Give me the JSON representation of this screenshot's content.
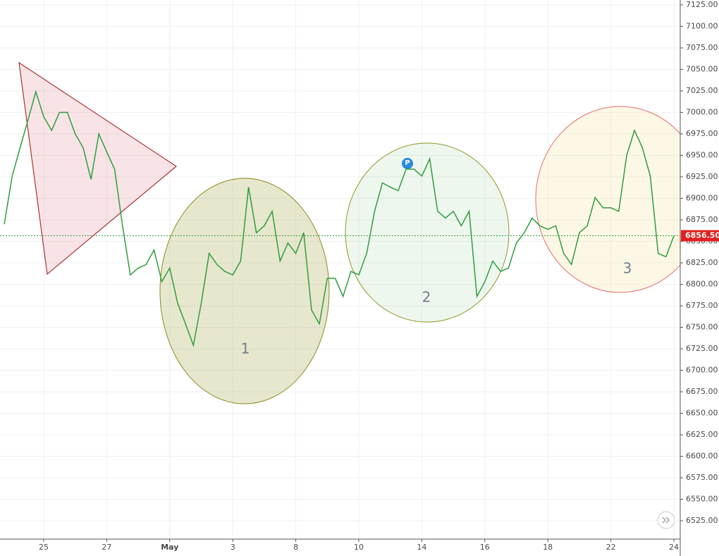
{
  "chart_data": {
    "type": "line",
    "categories": [
      null,
      null,
      null,
      null,
      null,
      "25",
      null,
      null,
      null,
      null,
      null,
      null,
      null,
      "27",
      null,
      null,
      null,
      null,
      null,
      null,
      null,
      "May",
      null,
      null,
      null,
      null,
      null,
      null,
      null,
      "3",
      null,
      null,
      null,
      null,
      null,
      null,
      null,
      "8",
      null,
      null,
      null,
      null,
      null,
      null,
      null,
      "10",
      null,
      null,
      null,
      null,
      null,
      null,
      null,
      "14",
      null,
      null,
      null,
      null,
      null,
      null,
      null,
      "16",
      null,
      null,
      null,
      null,
      null,
      null,
      null,
      "18",
      null,
      null,
      null,
      null,
      null,
      null,
      null,
      "22",
      null,
      null,
      null,
      null,
      null,
      null,
      null,
      "24"
    ],
    "series": [
      {
        "color": "#2e9e3e",
        "values": [
          6870,
          6926,
          6959,
          6991,
          7024,
          6995,
          6979,
          7000,
          7000,
          6975,
          6959,
          6922,
          6975,
          6954,
          6934,
          6868,
          6811,
          6819,
          6823,
          6840,
          6803,
          6819,
          6778,
          6754,
          6729,
          6778,
          6836,
          6823,
          6815,
          6811,
          6827,
          6913,
          6860,
          6868,
          6885,
          6827,
          6848,
          6836,
          6860,
          6770,
          6754,
          6807,
          6807,
          6786,
          6815,
          6811,
          6836,
          6885,
          6918,
          6913,
          6909,
          6934,
          6934,
          6926,
          6946,
          6885,
          6877,
          6885,
          6868,
          6885,
          6786,
          6803,
          6827,
          6815,
          6819,
          6848,
          6860,
          6877,
          6868,
          6864,
          6868,
          6836,
          6823,
          6860,
          6868,
          6901,
          6889,
          6889,
          6885,
          6950,
          6979,
          6959,
          6926,
          6836,
          6832,
          6856.5
        ]
      }
    ],
    "last_price": {
      "value": 6856.5,
      "label": "6856.50"
    },
    "ylim": [
      6503.7,
      7130.7
    ],
    "yticks": [
      {
        "value": 6525,
        "label": "6525.00"
      },
      {
        "value": 6550,
        "label": "6550.00"
      },
      {
        "value": 6575,
        "label": "6575.00"
      },
      {
        "value": 6600,
        "label": "6600.00"
      },
      {
        "value": 6625,
        "label": "6625.00"
      },
      {
        "value": 6650,
        "label": "6650.00"
      },
      {
        "value": 6675,
        "label": "6675.00"
      },
      {
        "value": 6700,
        "label": "6700.00"
      },
      {
        "value": 6725,
        "label": "6725.00"
      },
      {
        "value": 6750,
        "label": "6750.00"
      },
      {
        "value": 6775,
        "label": "6775.00"
      },
      {
        "value": 6800,
        "label": "6800.00"
      },
      {
        "value": 6825,
        "label": "6825.00"
      },
      {
        "value": 6850,
        "label": "6850.00"
      },
      {
        "value": 6875,
        "label": "6875.00"
      },
      {
        "value": 6900,
        "label": "6900.00"
      },
      {
        "value": 6925,
        "label": "6925.00"
      },
      {
        "value": 6950,
        "label": "6950.00"
      },
      {
        "value": 6975,
        "label": "6975.00"
      },
      {
        "value": 7000,
        "label": "7000.00"
      },
      {
        "value": 7025,
        "label": "7025.00"
      },
      {
        "value": 7050,
        "label": "7050.00"
      },
      {
        "value": 7075,
        "label": "7075.00"
      },
      {
        "value": 7100,
        "label": "7100.00"
      },
      {
        "value": 7125,
        "label": "7125.00"
      }
    ],
    "grid": true,
    "annotations": [
      "1",
      "2",
      "3"
    ],
    "marker": "P"
  }
}
